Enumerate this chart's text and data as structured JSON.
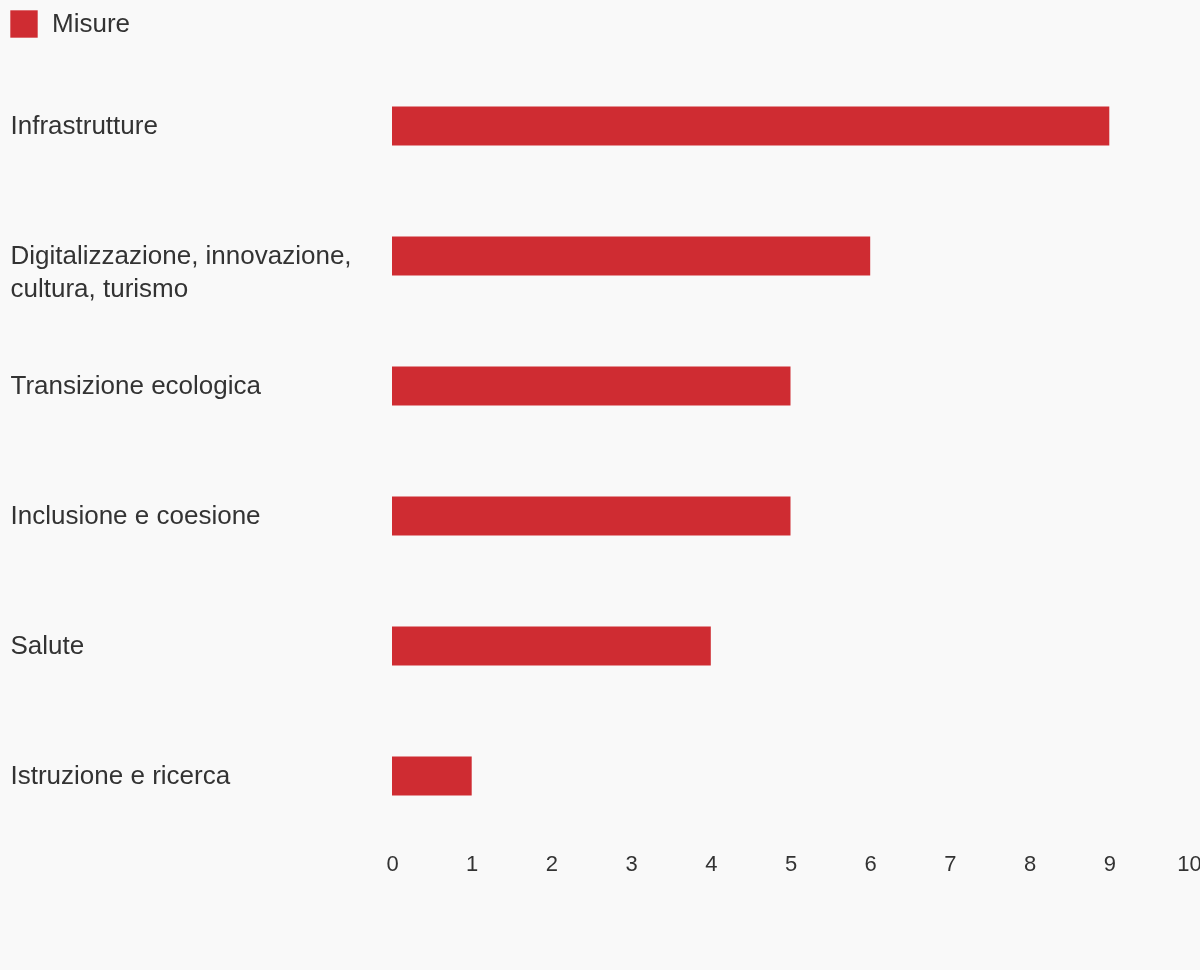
{
  "chart_data": {
    "type": "bar",
    "orientation": "horizontal",
    "categories": [
      "Infrastrutture",
      "Digitalizzazione, innovazione, cultura, turismo",
      "Transizione ecologica",
      "Inclusione e coesione",
      "Salute",
      "Istruzione e ricerca"
    ],
    "series": [
      {
        "name": "Misure",
        "color": "#cf2c32",
        "values": [
          9,
          6,
          5,
          5,
          4,
          1
        ]
      }
    ],
    "xlim": [
      0,
      10
    ],
    "xticks": [
      0,
      1,
      2,
      3,
      4,
      5,
      6,
      7,
      8,
      9,
      10
    ],
    "grid": false,
    "legend": "top left"
  }
}
